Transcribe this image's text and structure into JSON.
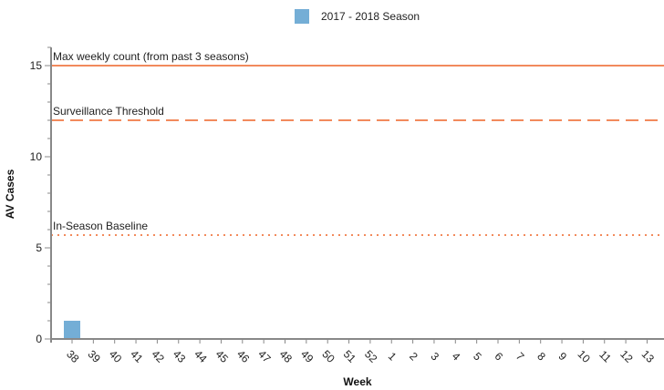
{
  "chart_data": {
    "type": "bar",
    "title": "",
    "xlabel": "Week",
    "ylabel": "AV Cases",
    "ylim": [
      0,
      16
    ],
    "yticks": [
      0,
      5,
      10,
      15
    ],
    "categories": [
      "38",
      "39",
      "40",
      "41",
      "42",
      "43",
      "44",
      "45",
      "46",
      "47",
      "48",
      "49",
      "50",
      "51",
      "52",
      "1",
      "2",
      "3",
      "4",
      "5",
      "6",
      "7",
      "8",
      "9",
      "10",
      "11",
      "12",
      "13"
    ],
    "series": [
      {
        "name": "2017 - 2018 Season",
        "color": "#74aed6",
        "values": [
          1,
          0,
          0,
          0,
          0,
          0,
          0,
          0,
          0,
          0,
          0,
          0,
          0,
          0,
          0,
          0,
          0,
          0,
          0,
          0,
          0,
          0,
          0,
          0,
          0,
          0,
          0,
          0
        ]
      }
    ],
    "reference_lines": [
      {
        "label": "Max weekly count (from past 3 seasons)",
        "value": 15,
        "style": "solid",
        "color": "#f28a5c"
      },
      {
        "label": "Surveillance Threshold",
        "value": 12,
        "style": "dashed",
        "color": "#f28a5c"
      },
      {
        "label": "In-Season Baseline",
        "value": 5.7,
        "style": "dotted",
        "color": "#f28a5c"
      }
    ],
    "legend": {
      "position": "top-center",
      "entries": [
        "2017 - 2018 Season"
      ]
    },
    "grid": false
  }
}
